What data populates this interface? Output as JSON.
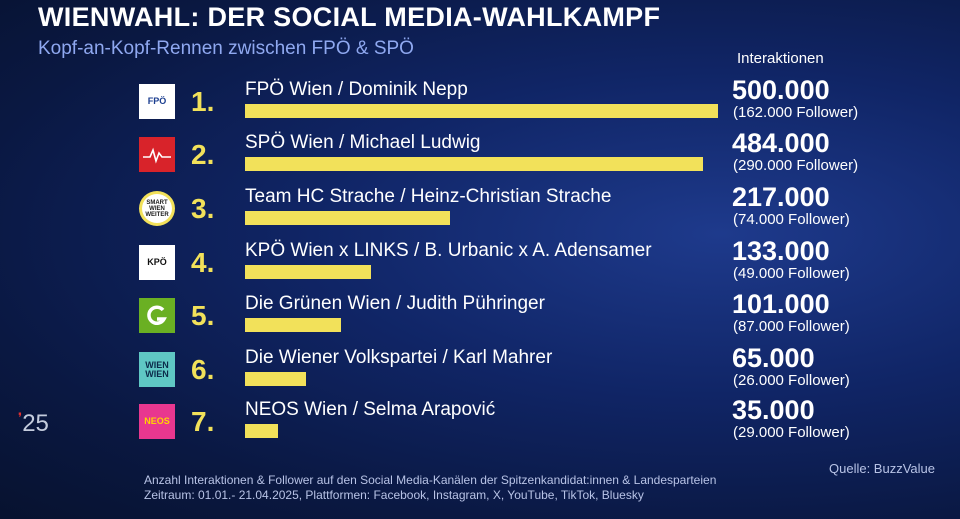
{
  "header": {
    "title": "WIENWAHL: DER SOCIAL MEDIA-WAHLKAMPF",
    "subtitle": "Kopf-an-Kopf-Rennen zwischen FPÖ & SPÖ"
  },
  "chart_data": {
    "type": "bar",
    "orientation": "horizontal",
    "value_column_label": "Interaktionen",
    "categories": [
      "FPÖ Wien / Dominik Nepp",
      "SPÖ Wien / Michael Ludwig",
      "Team HC Strache / Heinz-Christian Strache",
      "KPÖ Wien x LINKS / B. Urbanic x A. Adensamer",
      "Die Grünen Wien / Judith Pühringer",
      "Die Wiener Volkspartei / Karl Mahrer",
      "NEOS Wien / Selma Arapović"
    ],
    "ranks": [
      "1.",
      "2.",
      "3.",
      "4.",
      "5.",
      "6.",
      "7."
    ],
    "values": [
      500000,
      484000,
      217000,
      133000,
      101000,
      65000,
      35000
    ],
    "value_labels": [
      "500.000",
      "484.000",
      "217.000",
      "133.000",
      "101.000",
      "65.000",
      "35.000"
    ],
    "follower_labels": [
      "(162.000 Follower)",
      "(290.000 Follower)",
      "(74.000 Follower)",
      "(49.000 Follower)",
      "(87.000 Follower)",
      "(26.000 Follower)",
      "(29.000 Follower)"
    ],
    "bar_color": "#f2e15a",
    "xlim": [
      0,
      500000
    ],
    "grid": false
  },
  "logos": [
    {
      "icon": "fpoe-logo-icon",
      "text": "FPÖ",
      "bg": "#ffffff",
      "fg": "#1a3d8f"
    },
    {
      "icon": "spoe-logo-icon",
      "text": "",
      "bg": "#d8232a",
      "fg": "#ffffff"
    },
    {
      "icon": "team-hc-strache-logo-icon",
      "text": "SMART WIEN WEITER",
      "bg": "#ffffff",
      "fg": "#1a1a1a"
    },
    {
      "icon": "kpoe-logo-icon",
      "text": "KPÖ",
      "bg": "#ffffff",
      "fg": "#111111"
    },
    {
      "icon": "gruene-logo-icon",
      "text": "",
      "bg": "#6ab023",
      "fg": "#ffffff"
    },
    {
      "icon": "wiener-volkspartei-logo-icon",
      "text": "WIEN WIEN",
      "bg": "#5fc7c4",
      "fg": "#0b2a4a"
    },
    {
      "icon": "neos-logo-icon",
      "text": "NEOS",
      "bg": "#e8378f",
      "fg": "#ffd400"
    }
  ],
  "channel": {
    "year_mark": "❜",
    "year_text": "25"
  },
  "footer": {
    "line1": "Anzahl Interaktionen & Follower auf den Social Media-Kanälen der Spitzenkandidat:innen & Landesparteien",
    "line2": "Zeitraum: 01.01.- 21.04.2025, Plattformen: Facebook, Instagram, X, YouTube, TikTok, Bluesky",
    "source": "Quelle:  BuzzValue"
  }
}
